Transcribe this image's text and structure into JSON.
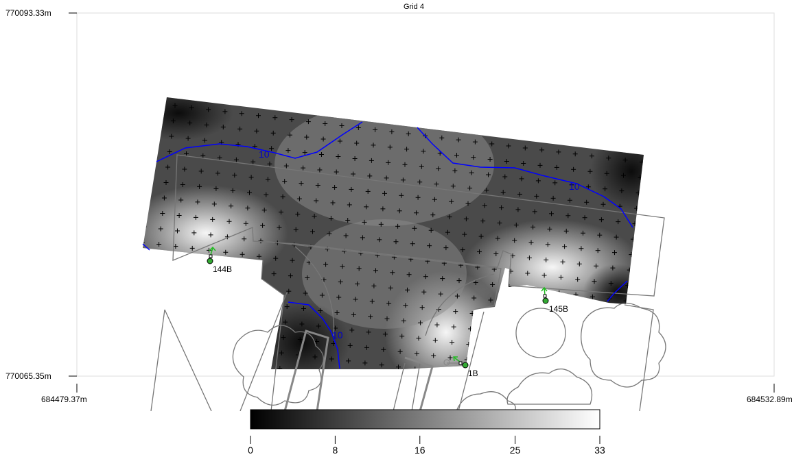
{
  "chart_data": {
    "type": "heatmap",
    "title": "Grid 4",
    "x_axis": {
      "min_label": "684479.37m",
      "max_label": "684532.89m"
    },
    "y_axis": {
      "max_label": "770093.33m",
      "min_label": "770065.35m"
    },
    "contours": [
      {
        "level": 10,
        "label": "10",
        "color": "#0000ff"
      }
    ],
    "luminaires": [
      {
        "id": "144B"
      },
      {
        "id": "145B"
      },
      {
        "id": "1B"
      }
    ],
    "colorbar": {
      "range": [
        0,
        33
      ],
      "ticks": [
        "0",
        "8",
        "16",
        "25",
        "33"
      ],
      "colors": [
        "#000000",
        "#ffffff"
      ]
    },
    "grid": true
  },
  "colors": {
    "contour": "#0000ff",
    "outline": "#777777",
    "luminaire_fill": "#33aa33",
    "aim_arrow": "#22bb22"
  }
}
